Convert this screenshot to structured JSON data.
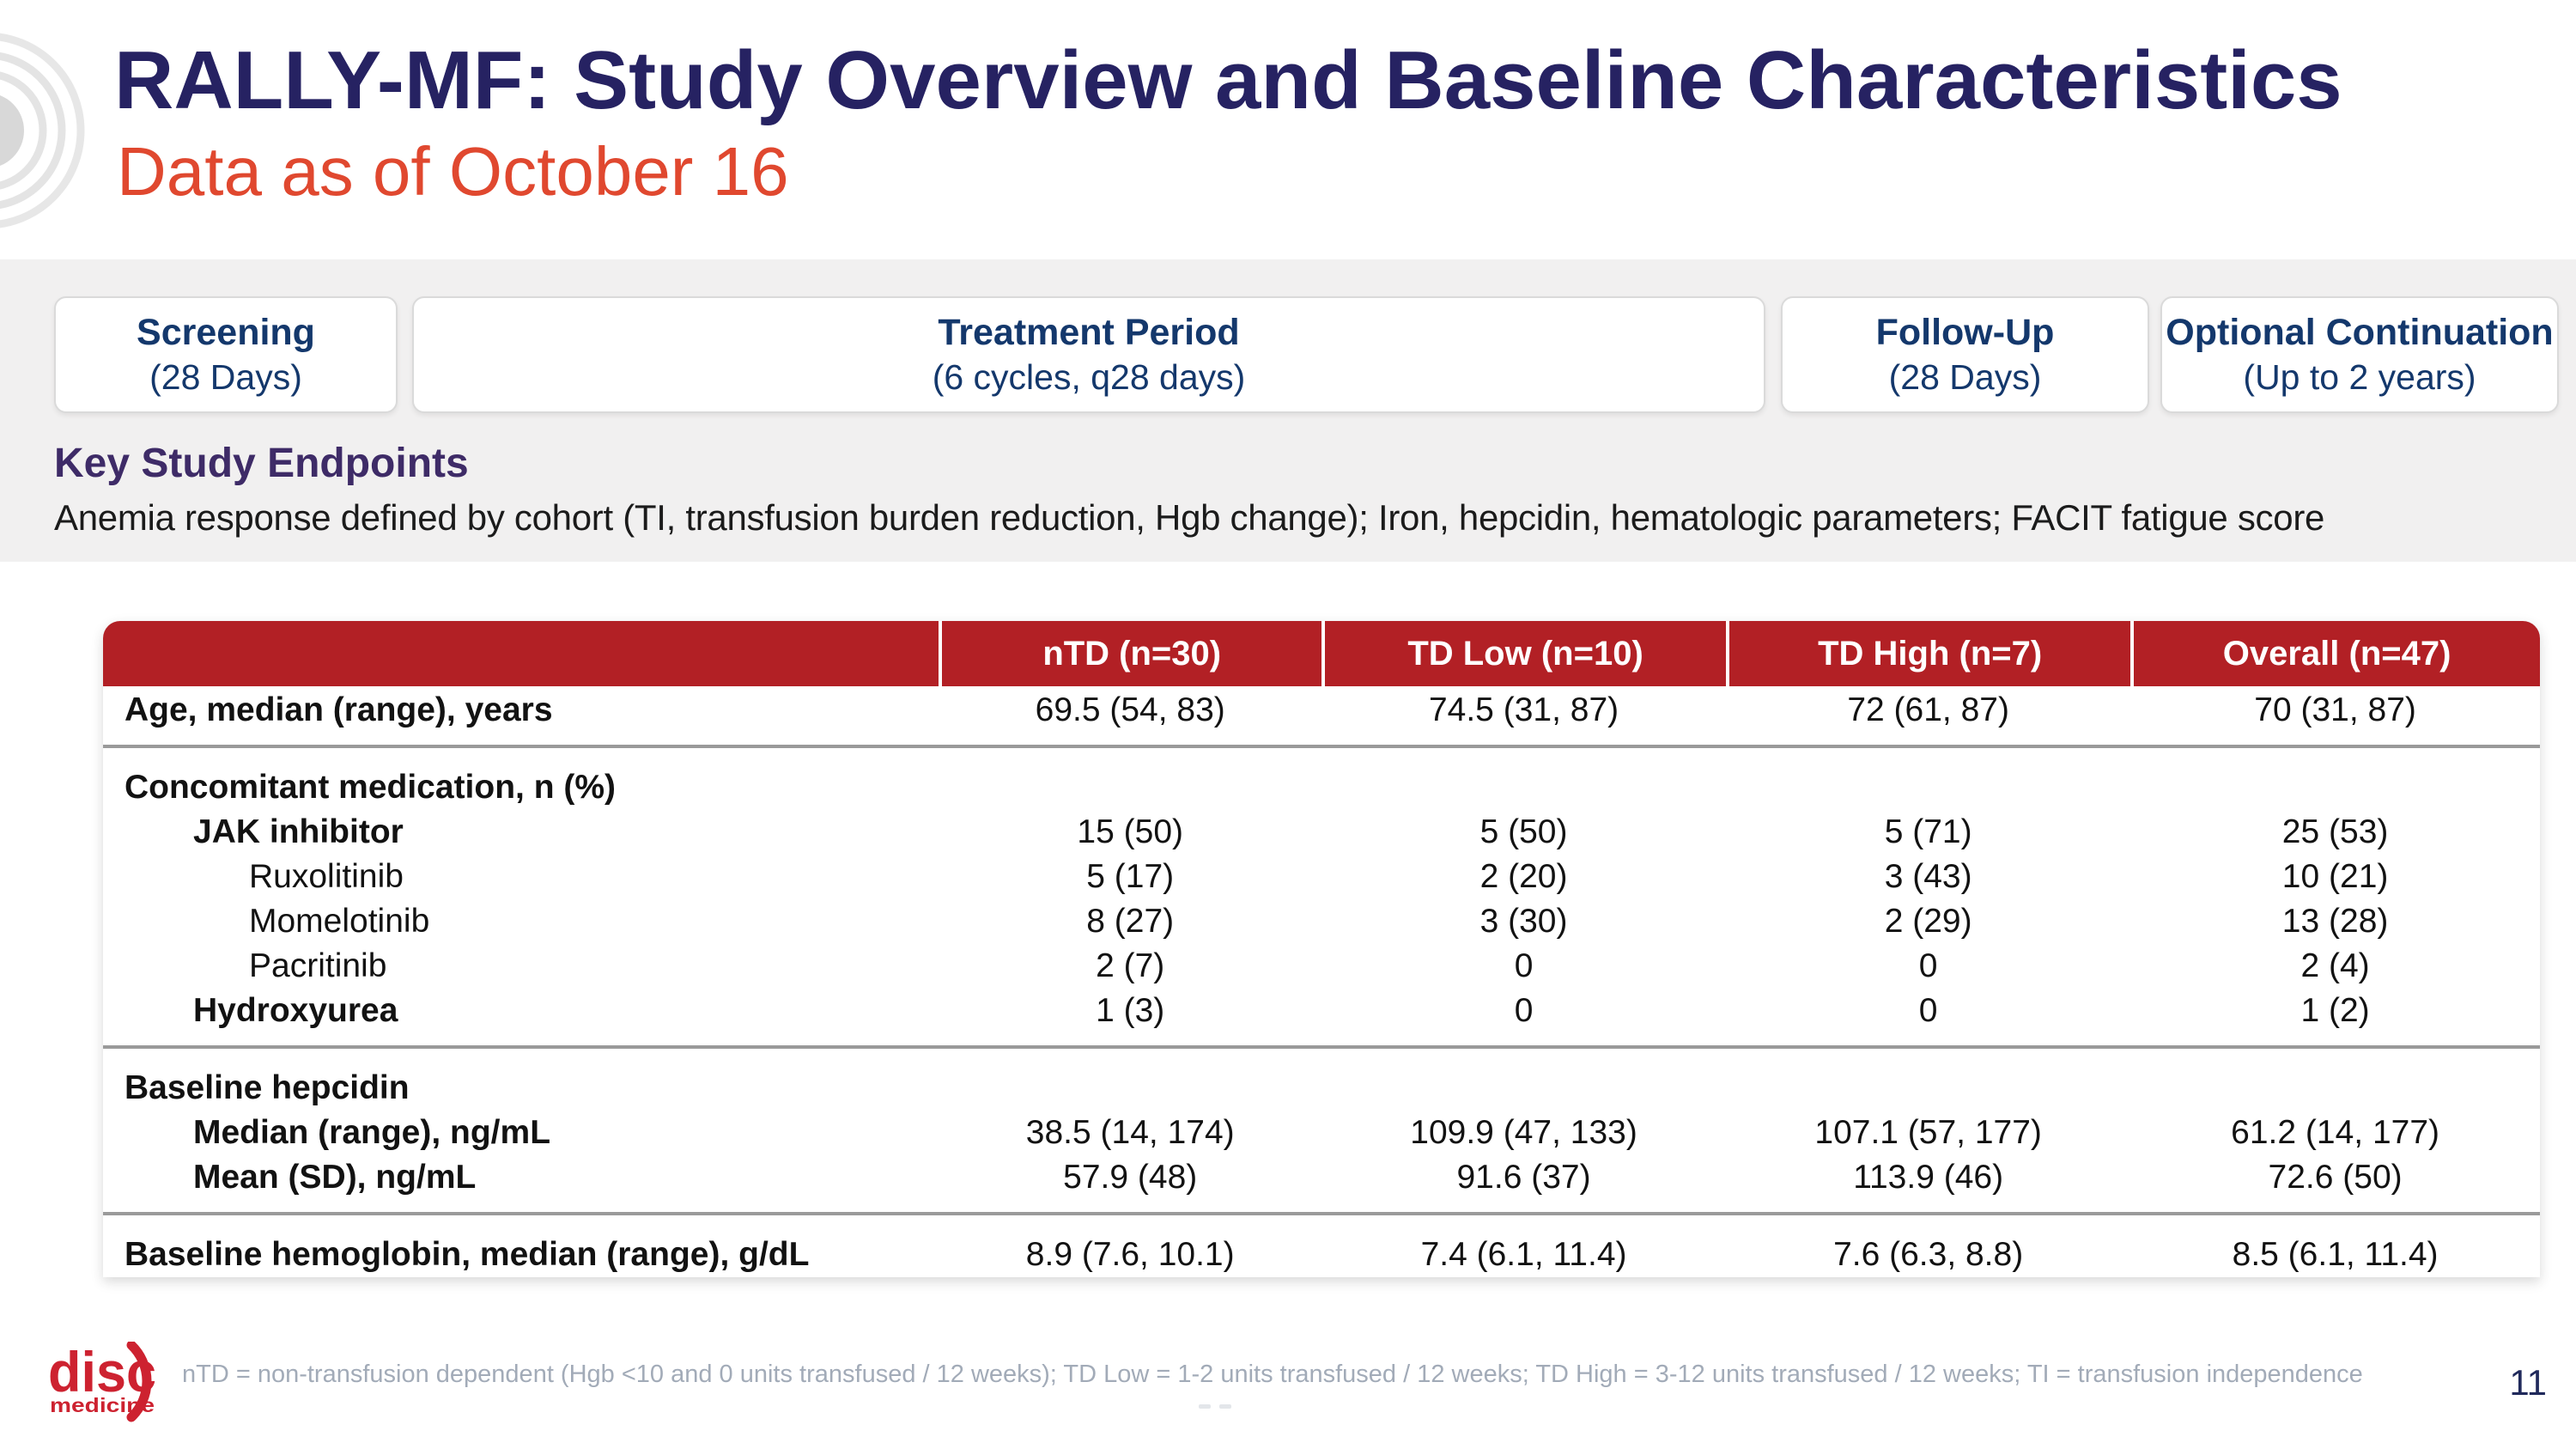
{
  "slide": {
    "title": "RALLY-MF: Study Overview and Baseline Characteristics",
    "subtitle": "Data as of October 16",
    "page_number": "11"
  },
  "timeline": {
    "phases": [
      {
        "title": "Screening",
        "detail": "(28 Days)"
      },
      {
        "title": "Treatment Period",
        "detail": "(6 cycles, q28 days)"
      },
      {
        "title": "Follow-Up",
        "detail": "(28 Days)"
      },
      {
        "title": "Optional Continuation",
        "detail": "(Up to 2 years)"
      }
    ]
  },
  "endpoints": {
    "heading": "Key Study Endpoints",
    "description": "Anemia response defined by cohort (TI, transfusion burden reduction, Hgb change); Iron, hepcidin, hematologic parameters; FACIT fatigue score"
  },
  "table": {
    "columns": [
      "",
      "nTD (n=30)",
      "TD Low (n=10)",
      "TD High (n=7)",
      "Overall (n=47)"
    ],
    "rows": [
      {
        "label": "Age, median (range), years",
        "bold": true,
        "indent": 0,
        "divider_above": false,
        "values": [
          "69.5 (54, 83)",
          "74.5 (31, 87)",
          "72 (61, 87)",
          "70 (31, 87)"
        ]
      },
      {
        "label": "Concomitant medication, n (%)",
        "bold": true,
        "indent": 0,
        "divider_above": true,
        "values": [
          "",
          "",
          "",
          ""
        ]
      },
      {
        "label": "JAK inhibitor",
        "bold": true,
        "indent": 1,
        "divider_above": false,
        "values": [
          "15 (50)",
          "5 (50)",
          "5 (71)",
          "25 (53)"
        ]
      },
      {
        "label": "Ruxolitinib",
        "bold": false,
        "indent": 2,
        "divider_above": false,
        "values": [
          "5 (17)",
          "2 (20)",
          "3 (43)",
          "10 (21)"
        ]
      },
      {
        "label": "Momelotinib",
        "bold": false,
        "indent": 2,
        "divider_above": false,
        "values": [
          "8 (27)",
          "3 (30)",
          "2 (29)",
          "13 (28)"
        ]
      },
      {
        "label": "Pacritinib",
        "bold": false,
        "indent": 2,
        "divider_above": false,
        "values": [
          "2 (7)",
          "0",
          "0",
          "2 (4)"
        ]
      },
      {
        "label": "Hydroxyurea",
        "bold": true,
        "indent": 1,
        "divider_above": false,
        "values": [
          "1 (3)",
          "0",
          "0",
          "1 (2)"
        ]
      },
      {
        "label": "Baseline hepcidin",
        "bold": true,
        "indent": 0,
        "divider_above": true,
        "values": [
          "",
          "",
          "",
          ""
        ]
      },
      {
        "label": "Median (range), ng/mL",
        "bold": true,
        "indent": 1,
        "divider_above": false,
        "values": [
          "38.5 (14, 174)",
          "109.9 (47, 133)",
          "107.1 (57, 177)",
          "61.2 (14, 177)"
        ]
      },
      {
        "label": "Mean (SD), ng/mL",
        "bold": true,
        "indent": 1,
        "divider_above": false,
        "values": [
          "57.9 (48)",
          "91.6 (37)",
          "113.9 (46)",
          "72.6 (50)"
        ]
      },
      {
        "label": "Baseline hemoglobin, median (range), g/dL",
        "bold": true,
        "indent": 0,
        "divider_above": true,
        "values": [
          "8.9 (7.6, 10.1)",
          "7.4 (6.1, 11.4)",
          "7.6 (6.3, 8.8)",
          "8.5 (6.1, 11.4)"
        ]
      }
    ]
  },
  "footer": {
    "logo_text": "disc",
    "logo_subtext": "medicine",
    "footnote": "nTD = non-transfusion dependent (Hgb <10 and 0 units transfused / 12 weeks); TD Low = 1-2 units transfused / 12 weeks; TD High = 3-12 units transfused / 12 weeks; TI = transfusion independence"
  },
  "colors": {
    "title_navy": "#262262",
    "subtitle_red": "#E0482F",
    "table_header_red": "#B22025",
    "timeline_navy": "#14386C",
    "endpoints_purple": "#3E2B67",
    "band_gray": "#F1F0F0",
    "divider_gray": "#9A9A9A",
    "footnote_gray": "#A2ABB8",
    "logo_red": "#CD2230",
    "page_number_navy": "#20295B"
  }
}
